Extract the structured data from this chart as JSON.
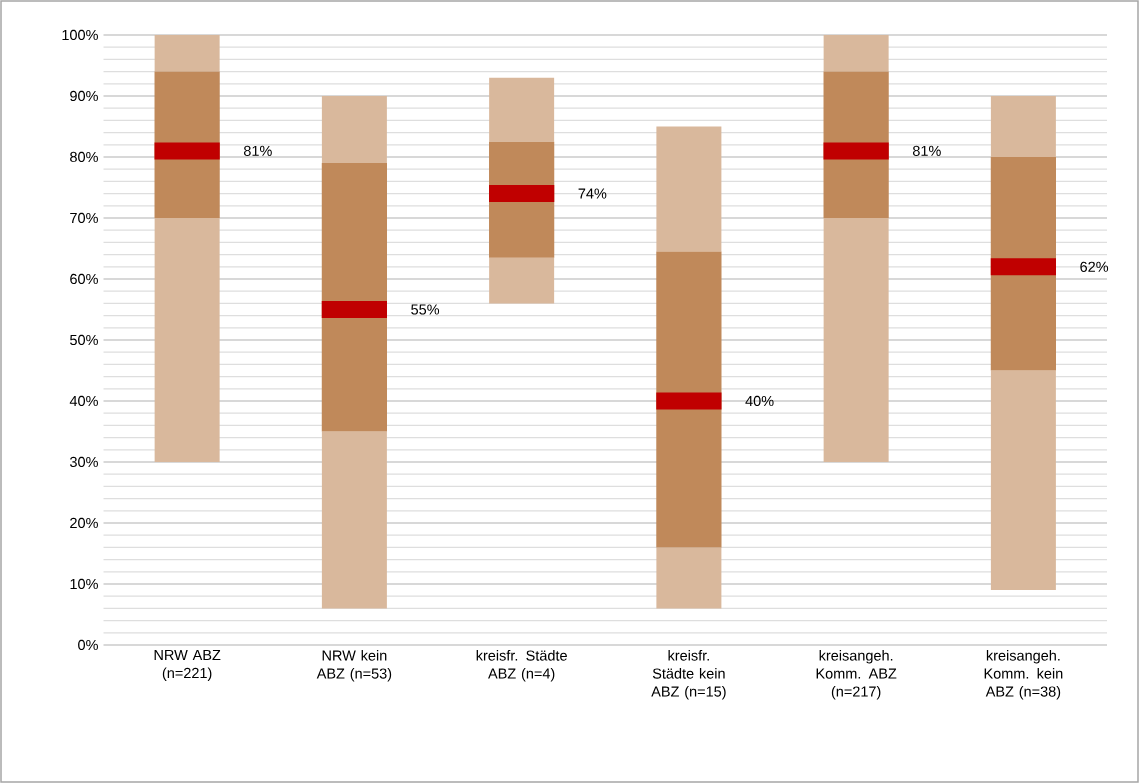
{
  "chart_data": {
    "type": "box",
    "categories": [
      "NRW ABZ (n=221)",
      "NRW kein ABZ (n=53)",
      "kreisfr. Städte ABZ (n=4)",
      "kreisfr. Städte kein ABZ (n=15)",
      "kreisangeh. Komm. ABZ (n=217)",
      "kreisangeh. Komm. kein ABZ (n=38)"
    ],
    "boxes": [
      {
        "low": 30,
        "q1": 70,
        "median": 81,
        "q3": 94,
        "high": 100
      },
      {
        "low": 6,
        "q1": 35,
        "median": 55,
        "q3": 79,
        "high": 90
      },
      {
        "low": 56,
        "q1": 63.5,
        "median": 74,
        "q3": 82.5,
        "high": 93
      },
      {
        "low": 6,
        "q1": 16,
        "median": 40,
        "q3": 64.5,
        "high": 85
      },
      {
        "low": 30,
        "q1": 70,
        "median": 81,
        "q3": 94,
        "high": 100
      },
      {
        "low": 9,
        "q1": 45,
        "median": 62,
        "q3": 80,
        "high": 90
      }
    ],
    "color": "#c0895a",
    "annotations": [
      "81%",
      "55%",
      "74%",
      "40%",
      "81%",
      "62%"
    ],
    "ylim": [
      0,
      100
    ],
    "yticks": [
      {
        "value": 0,
        "label": "0%"
      },
      {
        "value": 10,
        "label": "10%"
      },
      {
        "value": 20,
        "label": "20%"
      },
      {
        "value": 30,
        "label": "30%"
      },
      {
        "value": 40,
        "label": "40%"
      },
      {
        "value": 50,
        "label": "50%"
      },
      {
        "value": 60,
        "label": "60%"
      },
      {
        "value": 70,
        "label": "70%"
      },
      {
        "value": 80,
        "label": "80%"
      },
      {
        "value": 90,
        "label": "90%"
      },
      {
        "value": 100,
        "label": "100%"
      }
    ],
    "grid": true
  }
}
